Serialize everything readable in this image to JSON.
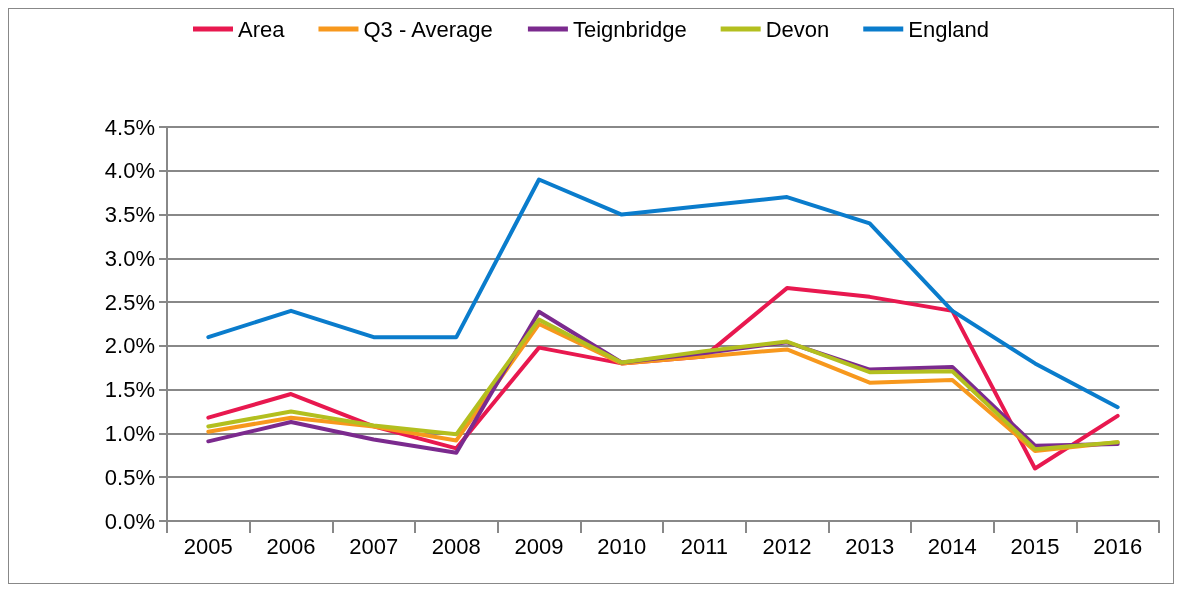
{
  "chart_data": {
    "type": "line",
    "categories": [
      "2005",
      "2006",
      "2007",
      "2008",
      "2009",
      "2010",
      "2011",
      "2012",
      "2013",
      "2014",
      "2015",
      "2016"
    ],
    "series": [
      {
        "name": "Area",
        "color": "#e8184f",
        "values": [
          1.18,
          1.45,
          1.08,
          0.83,
          1.98,
          1.8,
          1.88,
          2.66,
          2.56,
          2.4,
          0.6,
          1.2
        ]
      },
      {
        "name": "Q3 - Average",
        "color": "#f7981d",
        "values": [
          1.02,
          1.18,
          1.08,
          0.92,
          2.25,
          1.8,
          1.88,
          1.96,
          1.58,
          1.61,
          0.8,
          0.9
        ]
      },
      {
        "name": "Teignbridge",
        "color": "#7b2a8e",
        "values": [
          0.91,
          1.13,
          0.93,
          0.78,
          2.39,
          1.81,
          1.92,
          2.04,
          1.73,
          1.76,
          0.86,
          0.88
        ]
      },
      {
        "name": "Devon",
        "color": "#b3bf1f",
        "values": [
          1.08,
          1.25,
          1.09,
          0.99,
          2.3,
          1.81,
          1.94,
          2.05,
          1.7,
          1.71,
          0.82,
          0.9
        ]
      },
      {
        "name": "England",
        "color": "#0a7ccc",
        "values": [
          2.1,
          2.4,
          2.1,
          2.1,
          3.9,
          3.5,
          3.6,
          3.7,
          3.4,
          2.4,
          1.8,
          1.3
        ]
      }
    ],
    "ylim": [
      0,
      4.5
    ],
    "yticks": [
      {
        "value": 0,
        "label": "0.0%"
      },
      {
        "value": 0.5,
        "label": "0.5%"
      },
      {
        "value": 1,
        "label": "1.0%"
      },
      {
        "value": 1.5,
        "label": "1.5%"
      },
      {
        "value": 2,
        "label": "2.0%"
      },
      {
        "value": 2.5,
        "label": "2.5%"
      },
      {
        "value": 3,
        "label": "3.0%"
      },
      {
        "value": 3.5,
        "label": "3.5%"
      },
      {
        "value": 4,
        "label": "4.0%"
      },
      {
        "value": 4.5,
        "label": "4.5%"
      }
    ],
    "grid": "y",
    "legend": "top",
    "marker": "none",
    "line_style": "solid"
  }
}
